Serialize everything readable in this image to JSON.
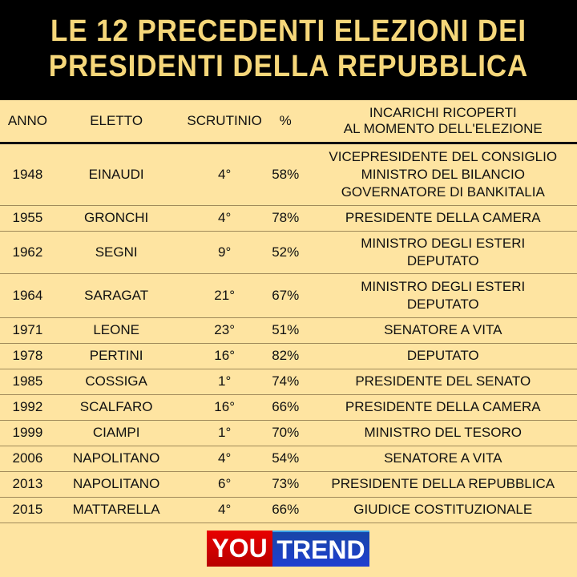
{
  "title": {
    "line1": "LE 12 PRECEDENTI ELEZIONI DEI",
    "line2": "PRESIDENTI DELLA REPUBBLICA"
  },
  "headers": {
    "anno": "ANNO",
    "eletto": "ELETTO",
    "scrutinio": "SCRUTINIO",
    "pct": "%",
    "incarichi1": "INCARICHI RICOPERTI",
    "incarichi2": "AL MOMENTO DELL'ELEZIONE"
  },
  "rows": [
    {
      "anno": "1948",
      "eletto": "EINAUDI",
      "scrutinio": "4°",
      "pct": "58%",
      "incarichi": [
        "VICEPRESIDENTE DEL CONSIGLIO",
        "MINISTRO DEL BILANCIO",
        "GOVERNATORE DI BANKITALIA"
      ]
    },
    {
      "anno": "1955",
      "eletto": "GRONCHI",
      "scrutinio": "4°",
      "pct": "78%",
      "incarichi": [
        "PRESIDENTE DELLA CAMERA"
      ]
    },
    {
      "anno": "1962",
      "eletto": "SEGNI",
      "scrutinio": "9°",
      "pct": "52%",
      "incarichi": [
        "MINISTRO DEGLI ESTERI",
        "DEPUTATO"
      ]
    },
    {
      "anno": "1964",
      "eletto": "SARAGAT",
      "scrutinio": "21°",
      "pct": "67%",
      "incarichi": [
        "MINISTRO DEGLI ESTERI",
        "DEPUTATO"
      ]
    },
    {
      "anno": "1971",
      "eletto": "LEONE",
      "scrutinio": "23°",
      "pct": "51%",
      "incarichi": [
        "SENATORE A VITA"
      ]
    },
    {
      "anno": "1978",
      "eletto": "PERTINI",
      "scrutinio": "16°",
      "pct": "82%",
      "incarichi": [
        "DEPUTATO"
      ]
    },
    {
      "anno": "1985",
      "eletto": "COSSIGA",
      "scrutinio": "1°",
      "pct": "74%",
      "incarichi": [
        "PRESIDENTE DEL SENATO"
      ]
    },
    {
      "anno": "1992",
      "eletto": "SCALFARO",
      "scrutinio": "16°",
      "pct": "66%",
      "incarichi": [
        "PRESIDENTE DELLA CAMERA"
      ]
    },
    {
      "anno": "1999",
      "eletto": "CIAMPI",
      "scrutinio": "1°",
      "pct": "70%",
      "incarichi": [
        "MINISTRO DEL TESORO"
      ]
    },
    {
      "anno": "2006",
      "eletto": "NAPOLITANO",
      "scrutinio": "4°",
      "pct": "54%",
      "incarichi": [
        "SENATORE A VITA"
      ]
    },
    {
      "anno": "2013",
      "eletto": "NAPOLITANO",
      "scrutinio": "6°",
      "pct": "73%",
      "incarichi": [
        "PRESIDENTE DELLA REPUBBLICA"
      ]
    },
    {
      "anno": "2015",
      "eletto": "MATTARELLA",
      "scrutinio": "4°",
      "pct": "66%",
      "incarichi": [
        "GIUDICE COSTITUZIONALE"
      ]
    }
  ],
  "logo": {
    "you": "YOU",
    "trend": "TREND"
  },
  "colors": {
    "background": "#fee4a1",
    "title_bg": "#000000",
    "title_text": "#f6d77a"
  }
}
